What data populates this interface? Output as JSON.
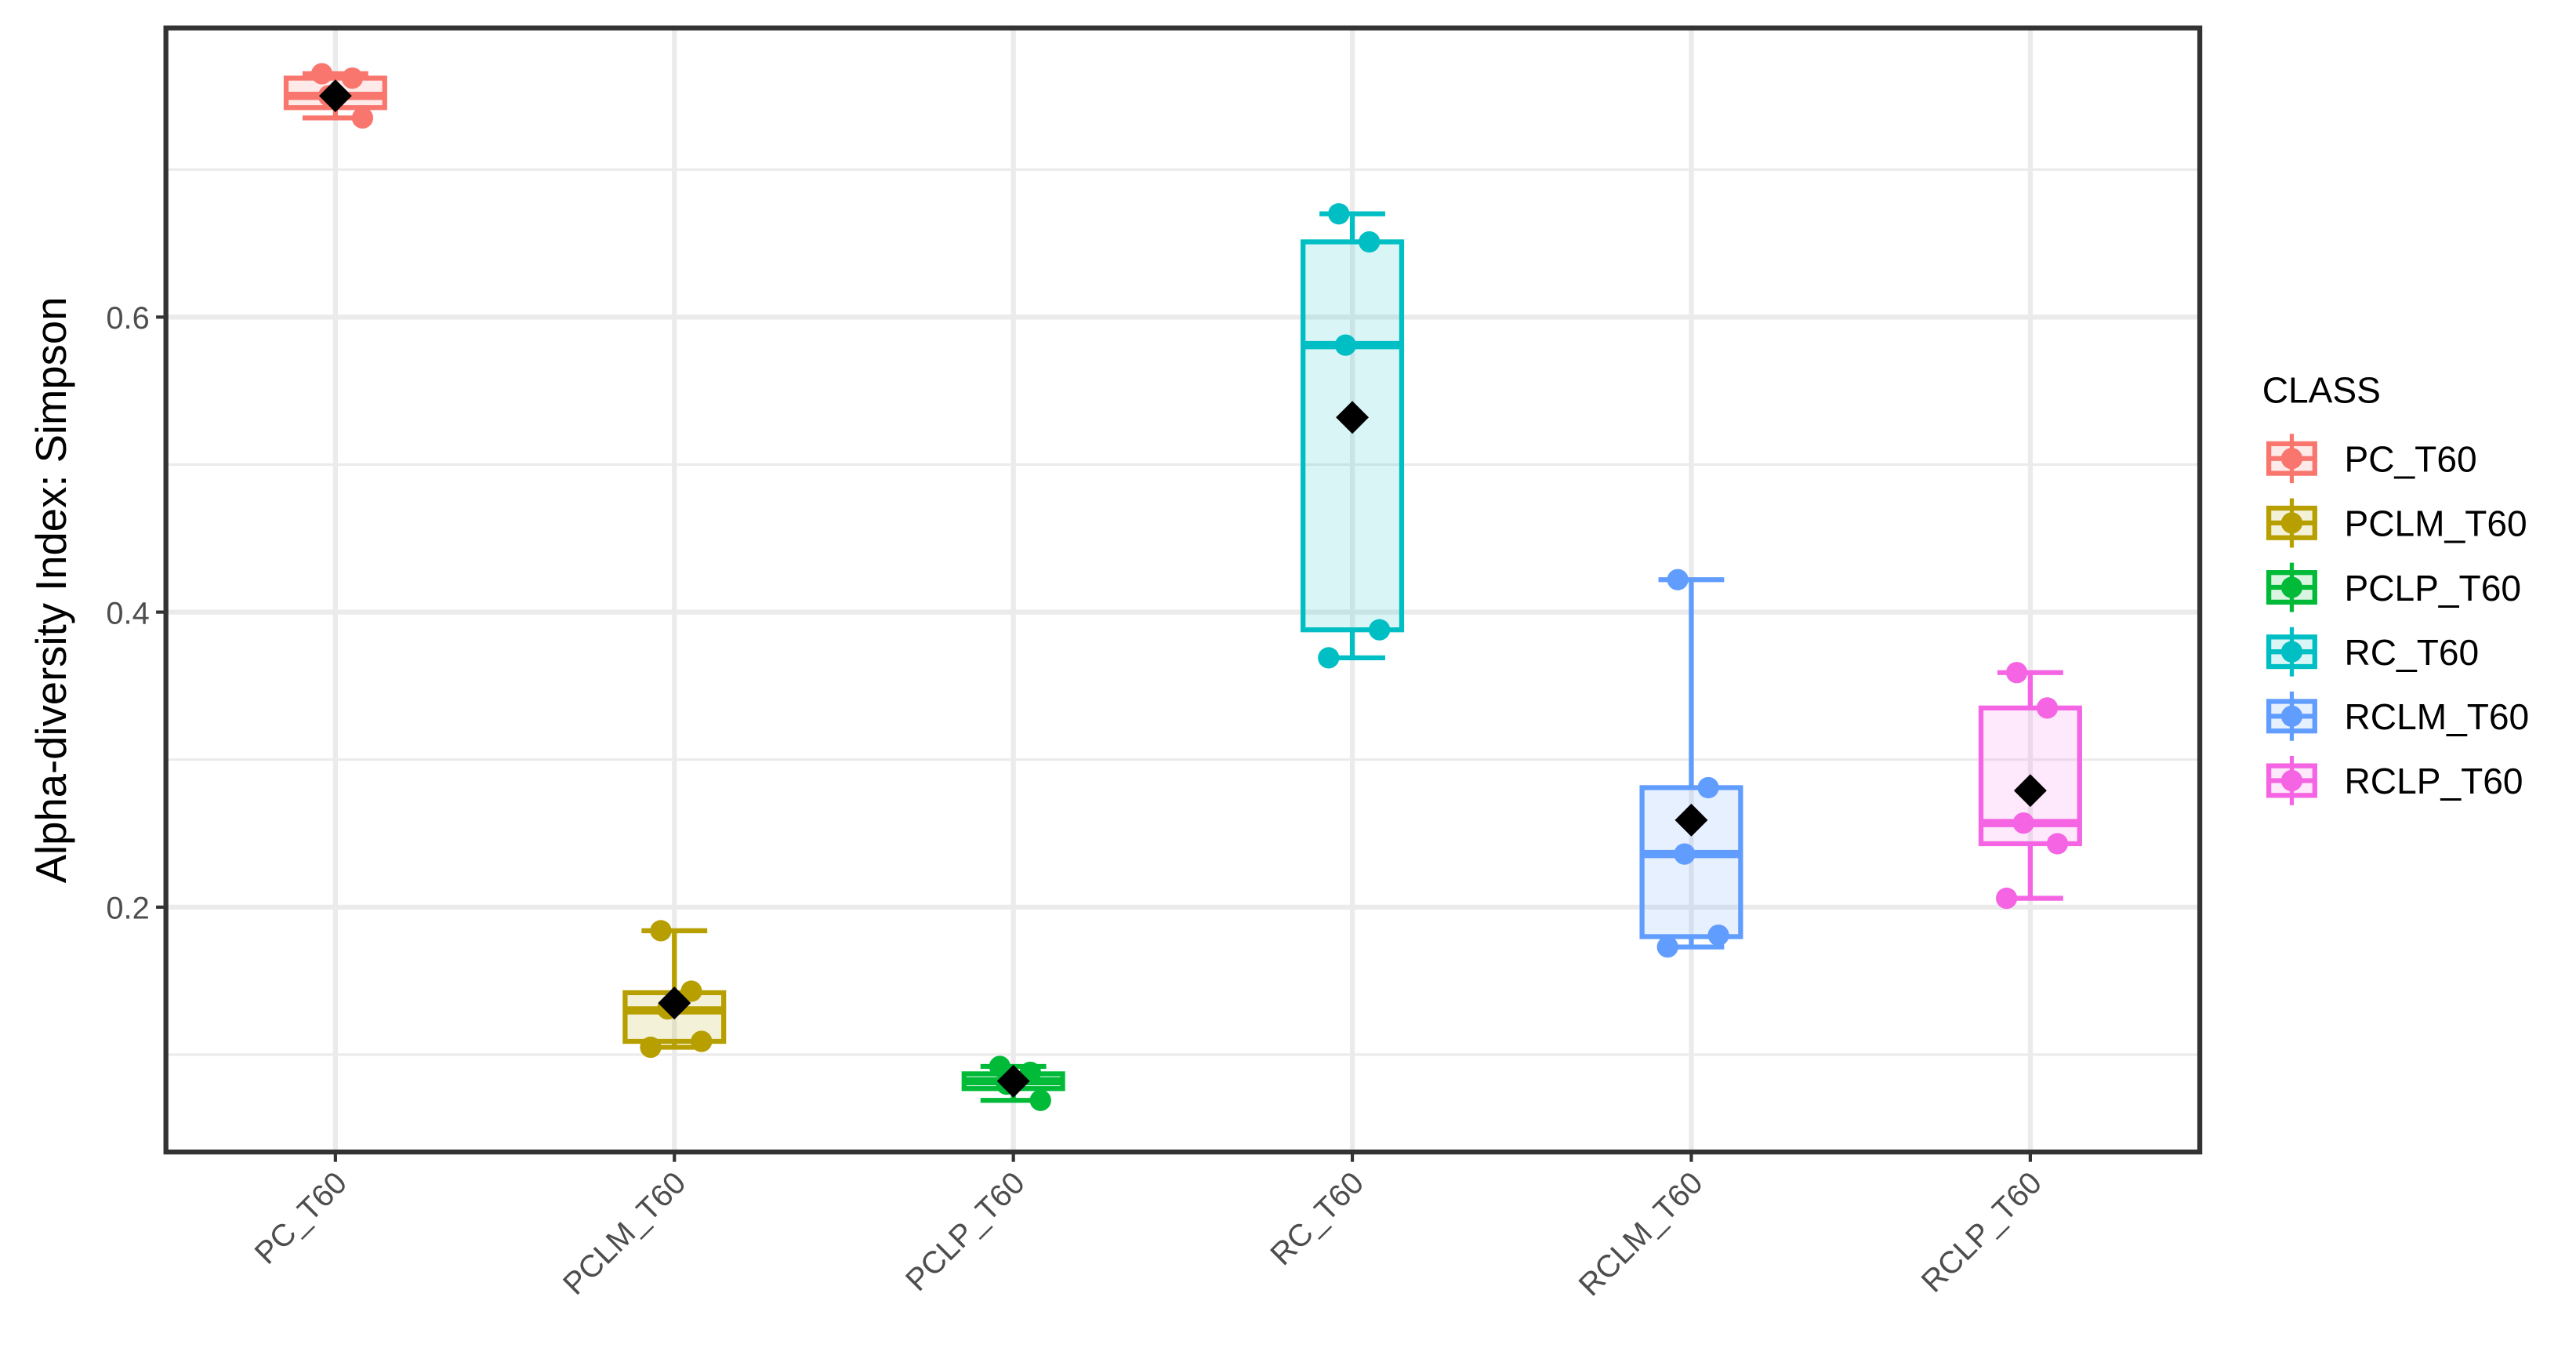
{
  "chart_data": {
    "type": "box",
    "y_label": "Alpha-diversity Index: Simpson",
    "legend_title": "CLASS",
    "legend_position": "right",
    "categories": [
      "PC_T60",
      "PCLM_T60",
      "PCLP_T60",
      "RC_T60",
      "RCLM_T60",
      "RCLP_T60"
    ],
    "ylim": [
      0.034,
      0.796
    ],
    "yticks": [
      0.2,
      0.4,
      0.6
    ],
    "y_minor_ticks": [
      0.1,
      0.3,
      0.5,
      0.7
    ],
    "grid": true,
    "mean_color": "#000000",
    "series": [
      {
        "name": "PC_T60",
        "color": "#F8766D",
        "min": 0.735,
        "q1": 0.742,
        "median": 0.75,
        "q3": 0.762,
        "max": 0.765,
        "mean": 0.75,
        "points": [
          0.765,
          0.762,
          0.75,
          0.735
        ]
      },
      {
        "name": "PCLM_T60",
        "color": "#B79F00",
        "min": 0.105,
        "q1": 0.109,
        "median": 0.13,
        "q3": 0.142,
        "max": 0.184,
        "mean": 0.135,
        "points": [
          0.184,
          0.143,
          0.131,
          0.109,
          0.105
        ]
      },
      {
        "name": "PCLP_T60",
        "color": "#00BA38",
        "min": 0.069,
        "q1": 0.077,
        "median": 0.082,
        "q3": 0.087,
        "max": 0.092,
        "mean": 0.082,
        "points": [
          0.092,
          0.088,
          0.08,
          0.069
        ]
      },
      {
        "name": "RC_T60",
        "color": "#00BFC4",
        "min": 0.369,
        "q1": 0.388,
        "median": 0.581,
        "q3": 0.651,
        "max": 0.67,
        "mean": 0.532,
        "points": [
          0.67,
          0.651,
          0.581,
          0.388,
          0.369
        ]
      },
      {
        "name": "RCLM_T60",
        "color": "#619CFF",
        "min": 0.173,
        "q1": 0.18,
        "median": 0.236,
        "q3": 0.281,
        "max": 0.422,
        "mean": 0.259,
        "points": [
          0.422,
          0.281,
          0.236,
          0.181,
          0.173
        ]
      },
      {
        "name": "RCLP_T60",
        "color": "#F564E3",
        "min": 0.206,
        "q1": 0.243,
        "median": 0.257,
        "q3": 0.335,
        "max": 0.359,
        "mean": 0.279,
        "points": [
          0.359,
          0.335,
          0.257,
          0.243,
          0.206
        ]
      }
    ]
  }
}
